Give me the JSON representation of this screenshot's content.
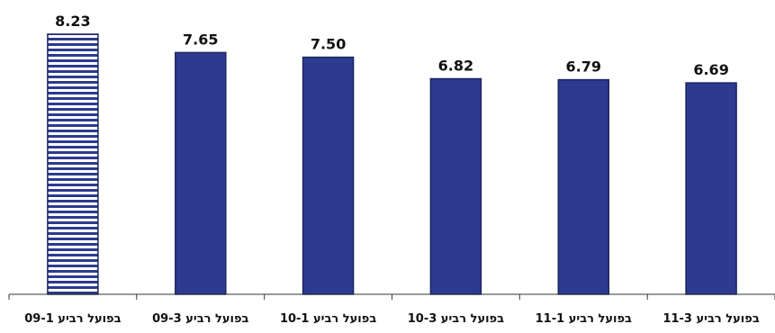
{
  "chart_data": {
    "type": "bar",
    "categories": [
      "בפועל רביע 09-1",
      "בפועל רביע 09-3",
      "בפועל רביע 10-1",
      "בפועל רביע 10-3",
      "בפועל רביע 11-1",
      "בפועל רביע 11-3"
    ],
    "values": [
      8.23,
      7.65,
      7.5,
      6.82,
      6.79,
      6.69
    ],
    "value_labels": [
      "8.23",
      "7.65",
      "7.50",
      "6.82",
      "6.79",
      "6.69"
    ],
    "ylim": [
      0,
      8.23
    ],
    "grid": false,
    "bar_color": "#2c3a8f",
    "highlight_index": 0,
    "highlight_pattern": "horizontal-stripes"
  }
}
